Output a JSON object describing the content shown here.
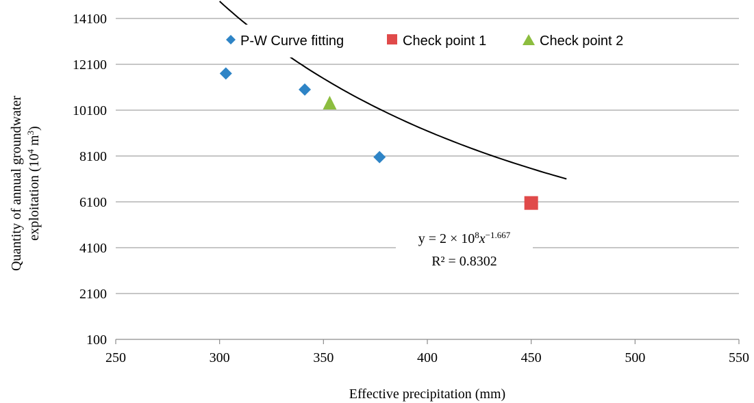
{
  "chart_data": {
    "type": "scatter",
    "xlabel": "Effective precipitation (mm)",
    "ylabel_line1": "Quantity of annual groundwater",
    "ylabel_line2_prefix": "exploitation (10",
    "ylabel_line2_sup1": "4",
    "ylabel_line2_mid": " m",
    "ylabel_line2_sup2": "3",
    "ylabel_line2_suffix": ")",
    "xlim": [
      250,
      550
    ],
    "ylim": [
      100,
      14100
    ],
    "x_ticks": [
      250,
      300,
      350,
      400,
      450,
      500,
      550
    ],
    "y_ticks": [
      100,
      2100,
      4100,
      6100,
      8100,
      10100,
      12100,
      14100
    ],
    "grid": "horizontal",
    "legend_position": "top",
    "series": [
      {
        "name": "P-W Curve fitting",
        "marker": "diamond",
        "color": "#2e84c6",
        "points": [
          [
            303,
            11700
          ],
          [
            341,
            11000
          ],
          [
            377,
            8050
          ]
        ]
      },
      {
        "name": "Check point 1",
        "marker": "square",
        "color": "#e04a4a",
        "points": [
          [
            450,
            6050
          ]
        ]
      },
      {
        "name": "Check point 2",
        "marker": "triangle",
        "color": "#8cbd3f",
        "points": [
          [
            353,
            10400
          ]
        ]
      }
    ],
    "trendline": {
      "equation_prefix": "y = 2 × 10",
      "equation_sup1": "8",
      "equation_var": "x",
      "equation_sup2": "−1.667",
      "r2_label": "R² = 0.8302",
      "coefficient": 200000000,
      "exponent": -1.667,
      "x_range": [
        300,
        467
      ]
    }
  }
}
